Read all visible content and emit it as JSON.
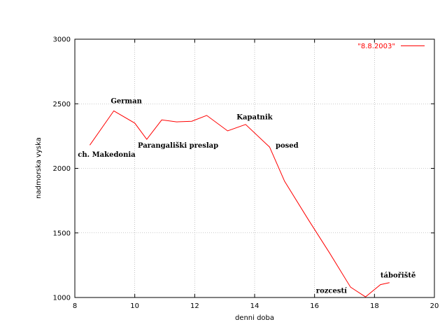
{
  "chart_data": {
    "type": "line",
    "title": "",
    "xlabel": "denni doba",
    "ylabel": "nadmorska vyska",
    "xlim": [
      8,
      20
    ],
    "ylim": [
      1000,
      3000
    ],
    "grid": true,
    "legend_position": "top-right",
    "xticks": [
      "8",
      "10",
      "12",
      "14",
      "16",
      "18",
      "20"
    ],
    "yticks": [
      "1000",
      "1500",
      "2000",
      "2500",
      "3000"
    ],
    "series": [
      {
        "name": "\"8.8.2003\"",
        "color": "#ff0000",
        "x": [
          8.5,
          9.3,
          10.0,
          10.4,
          10.9,
          11.4,
          11.9,
          12.4,
          13.1,
          13.7,
          14.5,
          15.0,
          15.8,
          16.5,
          17.2,
          17.7,
          18.2,
          18.5
        ],
        "y": [
          2180,
          2445,
          2350,
          2225,
          2375,
          2360,
          2365,
          2410,
          2290,
          2340,
          2165,
          1900,
          1600,
          1345,
          1080,
          1005,
          1100,
          1115
        ]
      }
    ],
    "annotations": [
      {
        "text": "German",
        "x": 9.2,
        "y": 2505
      },
      {
        "text": "ch. Makedonia",
        "x": 8.1,
        "y": 2090
      },
      {
        "text": "Parangališki preslap",
        "x": 10.1,
        "y": 2160
      },
      {
        "text": "Kapatnik",
        "x": 13.4,
        "y": 2380
      },
      {
        "text": "posed",
        "x": 14.7,
        "y": 2160
      },
      {
        "text": "rozcestí",
        "x": 16.05,
        "y": 1035
      },
      {
        "text": "tábořiště",
        "x": 18.2,
        "y": 1155
      }
    ]
  }
}
